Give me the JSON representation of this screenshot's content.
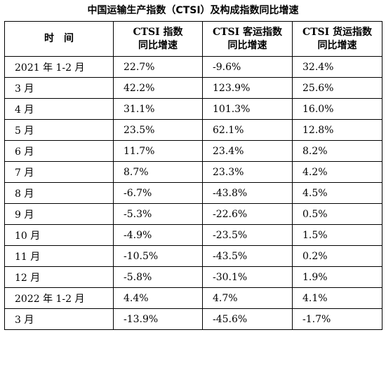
{
  "title": "中国运输生产指数（CTSI）及构成指数同比增速",
  "headers": [
    [
      "时　间"
    ],
    [
      "CTSI 指数",
      "同比增速"
    ],
    [
      "CTSI 客运指数",
      "同比增速"
    ],
    [
      "CTSI 货运指数",
      "同比增速"
    ]
  ],
  "rows": [
    [
      "2021 年 1-2 月",
      "22.7%",
      "-9.6%",
      "32.4%"
    ],
    [
      "3 月",
      "42.2%",
      "123.9%",
      "25.6%"
    ],
    [
      "4 月",
      "31.1%",
      "101.3%",
      "16.0%"
    ],
    [
      "5 月",
      "23.5%",
      "62.1%",
      "12.8%"
    ],
    [
      "6 月",
      "11.7%",
      "23.4%",
      "8.2%"
    ],
    [
      "7 月",
      "8.7%",
      "23.3%",
      "4.2%"
    ],
    [
      "8 月",
      "-6.7%",
      "-43.8%",
      "4.5%"
    ],
    [
      "9 月",
      "-5.3%",
      "-22.6%",
      "0.5%"
    ],
    [
      "10 月",
      "-4.9%",
      "-23.5%",
      "1.5%"
    ],
    [
      "11 月",
      "-10.5%",
      "-43.5%",
      "0.2%"
    ],
    [
      "12 月",
      "-5.8%",
      "-30.1%",
      "1.9%"
    ],
    [
      "2022 年 1-2 月",
      "4.4%",
      "4.7%",
      "4.1%"
    ],
    [
      "3 月",
      "-13.9%",
      "-45.6%",
      "-1.7%"
    ]
  ]
}
